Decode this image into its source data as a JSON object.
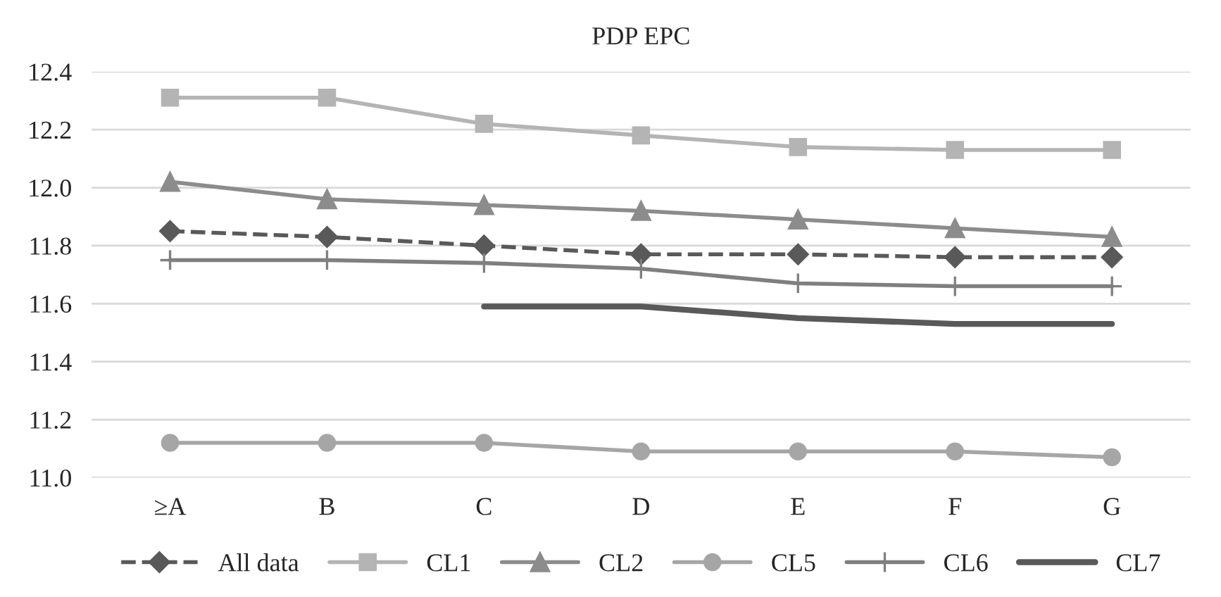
{
  "chart_data": {
    "type": "line",
    "title": "PDP EPC",
    "categories": [
      "≥A",
      "B",
      "C",
      "D",
      "E",
      "F",
      "G"
    ],
    "series": [
      {
        "name": "All data",
        "color": "#595959",
        "marker": "diamond",
        "line_style": "dashed",
        "values": [
          11.85,
          11.83,
          11.8,
          11.77,
          11.77,
          11.76,
          11.76
        ]
      },
      {
        "name": "CL1",
        "color": "#b4b4b4",
        "marker": "square",
        "line_style": "solid",
        "values": [
          12.31,
          12.31,
          12.22,
          12.18,
          12.14,
          12.13,
          12.13
        ]
      },
      {
        "name": "CL2",
        "color": "#8c8c8c",
        "marker": "triangle",
        "line_style": "solid",
        "values": [
          12.02,
          11.96,
          11.94,
          11.92,
          11.89,
          11.86,
          11.83
        ]
      },
      {
        "name": "CL5",
        "color": "#a6a6a6",
        "marker": "circle",
        "line_style": "solid",
        "values": [
          11.12,
          11.12,
          11.12,
          11.09,
          11.09,
          11.09,
          11.07
        ]
      },
      {
        "name": "CL6",
        "color": "#7f7f7f",
        "marker": "cross",
        "line_style": "solid",
        "values": [
          11.75,
          11.75,
          11.74,
          11.72,
          11.67,
          11.66,
          11.66
        ]
      },
      {
        "name": "CL7",
        "color": "#595959",
        "marker": "none",
        "line_style": "solid",
        "values": [
          null,
          null,
          11.59,
          11.59,
          11.55,
          11.53,
          11.53
        ]
      }
    ],
    "ylim": [
      11.0,
      12.4
    ],
    "yticks": [
      {
        "value": 11.0,
        "label": "11.0"
      },
      {
        "value": 11.2,
        "label": "11.2"
      },
      {
        "value": 11.4,
        "label": "11.4"
      },
      {
        "value": 11.6,
        "label": "11.6"
      },
      {
        "value": 11.8,
        "label": "11.8"
      },
      {
        "value": 12.0,
        "label": "12.0"
      },
      {
        "value": 12.2,
        "label": "12.2"
      },
      {
        "value": 12.4,
        "label": "12.4"
      }
    ],
    "grid": "y",
    "legend": "bottom"
  }
}
